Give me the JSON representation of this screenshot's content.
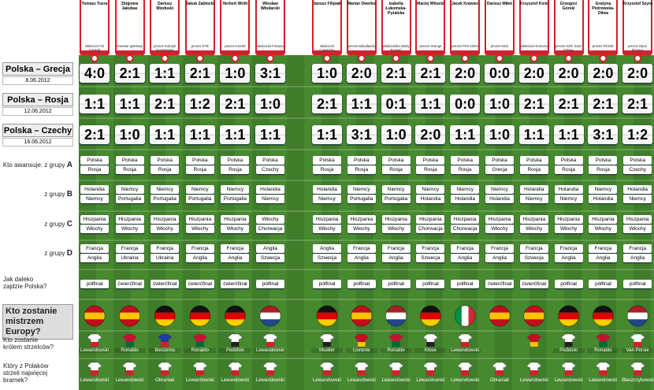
{
  "matches": [
    {
      "title": "Polska – Grecja",
      "date": "8.06.2012"
    },
    {
      "title": "Polska – Rosja",
      "date": "12.06.2012"
    },
    {
      "title": "Polska – Czechy",
      "date": "16.06.2012"
    }
  ],
  "labels": {
    "groups": [
      {
        "prefix": "Kto awansuje: z grupy",
        "letter": "A"
      },
      {
        "prefix": "z grupy",
        "letter": "B"
      },
      {
        "prefix": "z grupy",
        "letter": "C"
      },
      {
        "prefix": "z grupy",
        "letter": "D"
      }
    ],
    "poland": "Jak daleko zajdzie Polska?",
    "champion": "Kto zostanie mistrzem Europy?",
    "top_scorer": "Kto zostanie królem strzelców?",
    "polish_scorer": "Który z Polaków strzeli najwięcej bramek?"
  },
  "people": [
    {
      "name": "Tomasz Tusra",
      "role": "właściciel YZ Consult",
      "scores": [
        "4:0",
        "1:1",
        "2:1"
      ],
      "groups": [
        [
          "Polska",
          "Rosja"
        ],
        [
          "Holandia",
          "Niemcy"
        ],
        [
          "Hiszpania",
          "Włochy"
        ],
        [
          "Francja",
          "Anglia"
        ]
      ],
      "poland": "półfinał",
      "champion_flag": {
        "dir": "h",
        "colors": [
          "#c60b1e",
          "#ffc400",
          "#c60b1e"
        ]
      },
      "top_scorer": "Lewandowski",
      "top_jersey": [
        "#ffffff",
        "#d4202c"
      ],
      "polish_scorer": "Lewandowski"
    },
    {
      "name": "Zbigniew Jakubas",
      "role": "inwestor giełdowy",
      "scores": [
        "2:1",
        "1:1",
        "1:0"
      ],
      "groups": [
        [
          "Polska",
          "Rosja"
        ],
        [
          "Niemcy",
          "Portugalia"
        ],
        [
          "Hiszpania",
          "Włochy"
        ],
        [
          "Francja",
          "Ukraina"
        ]
      ],
      "poland": "ćwierćfinał",
      "champion_flag": {
        "dir": "h",
        "colors": [
          "#c60b1e",
          "#ffc400",
          "#c60b1e"
        ]
      },
      "top_scorer": "Ronaldo",
      "top_jersey": [
        "#c8102e",
        "#046a38"
      ],
      "polish_scorer": "Lewandowski"
    },
    {
      "name": "Dariusz Mioduski",
      "role": "prezes Kulczyk Investments",
      "scores": [
        "1:1",
        "2:1",
        "1:1"
      ],
      "groups": [
        [
          "Polska",
          "Rosja"
        ],
        [
          "Niemcy",
          "Portugalia"
        ],
        [
          "Hiszpania",
          "Włochy"
        ],
        [
          "Francja",
          "Ukraina"
        ]
      ],
      "poland": "ćwierćfinał",
      "champion_flag": {
        "dir": "h",
        "colors": [
          "#111111",
          "#dd0000",
          "#ffce00"
        ]
      },
      "top_scorer": "Benzema",
      "top_jersey": [
        "#1f3c9a",
        "#d4202c"
      ],
      "polish_scorer": "Obraniak"
    },
    {
      "name": "Jakub Zabłocki",
      "role": "prezes KTB",
      "scores": [
        "2:1",
        "1:2",
        "1:1"
      ],
      "groups": [
        [
          "Polska",
          "Rosja"
        ],
        [
          "Niemcy",
          "Portugalia"
        ],
        [
          "Hiszpania",
          "Włochy"
        ],
        [
          "Francja",
          "Anglia"
        ]
      ],
      "poland": "ćwierćfinał",
      "champion_flag": {
        "dir": "h",
        "colors": [
          "#111111",
          "#dd0000",
          "#ffce00"
        ]
      },
      "top_scorer": "Ronaldo",
      "top_jersey": [
        "#c8102e",
        "#046a38"
      ],
      "polish_scorer": "Lewandowski"
    },
    {
      "name": "Herbert Wirth",
      "role": "prezes KGHM",
      "scores": [
        "1:0",
        "2:1",
        "1:1"
      ],
      "groups": [
        [
          "Polska",
          "Rosja"
        ],
        [
          "Niemcy",
          "Portugalia"
        ],
        [
          "Hiszpania",
          "Włochy"
        ],
        [
          "Francja",
          "Anglia"
        ]
      ],
      "poland": "ćwierćfinał",
      "champion_flag": {
        "dir": "h",
        "colors": [
          "#111111",
          "#dd0000",
          "#ffce00"
        ]
      },
      "top_scorer": "Podolski",
      "top_jersey": [
        "#ffffff",
        "#222222"
      ],
      "polish_scorer": "Lewandowski"
    },
    {
      "name": "Wiesław Włodarski",
      "role": "właściciel Fortuna",
      "scores": [
        "3:1",
        "1:0",
        "1:1"
      ],
      "groups": [
        [
          "Polska",
          "Czechy"
        ],
        [
          "Holandia",
          "Niemcy"
        ],
        [
          "Włochy",
          "Chorwacja"
        ],
        [
          "Anglia",
          "Szwecja"
        ]
      ],
      "poland": "półfinał",
      "champion_flag": {
        "dir": "h",
        "colors": [
          "#ae1c28",
          "#ffffff",
          "#21468b"
        ]
      },
      "top_scorer": "Lewandowski",
      "top_jersey": [
        "#ffffff",
        "#d4202c"
      ],
      "polish_scorer": "Lewandowski"
    },
    {
      "name": "Janusz Filipiak",
      "role": "właściciel Comarchu",
      "scores": [
        "1:0",
        "2:1",
        "1:1"
      ],
      "groups": [
        [
          "Polska",
          "Rosja"
        ],
        [
          "Holandia",
          "Niemcy"
        ],
        [
          "Hiszpania",
          "Włochy"
        ],
        [
          "Anglia",
          "Szwecja"
        ]
      ],
      "poland": "półfinał",
      "champion_flag": {
        "dir": "h",
        "colors": [
          "#111111",
          "#dd0000",
          "#ffce00"
        ]
      },
      "top_scorer": "Mueller",
      "top_jersey": [
        "#ffffff",
        "#222222"
      ],
      "polish_scorer": "Lewandowski"
    },
    {
      "name": "Marian Owerko",
      "role": "prezes Bakallandu",
      "scores": [
        "2:0",
        "1:1",
        "3:1"
      ],
      "groups": [
        [
          "Polska",
          "Rosja"
        ],
        [
          "Niemcy",
          "Portugalia"
        ],
        [
          "Hiszpania",
          "Włochy"
        ],
        [
          "Francja",
          "Anglia"
        ]
      ],
      "poland": "półfinał",
      "champion_flag": {
        "dir": "h",
        "colors": [
          "#c60b1e",
          "#ffc400",
          "#c60b1e"
        ]
      },
      "top_scorer": "Llorente",
      "top_jersey": [
        "#c60b1e",
        "#ffc400"
      ],
      "polish_scorer": "Lewandowski"
    },
    {
      "name": "Izabella Łukomska-Pyżalska",
      "role": "właścicielka Warty Poznań",
      "scores": [
        "2:1",
        "0:1",
        "1:0"
      ],
      "groups": [
        [
          "Polska",
          "Rosja"
        ],
        [
          "Niemcy",
          "Portugalia"
        ],
        [
          "Hiszpania",
          "Włochy"
        ],
        [
          "Francja",
          "Anglia"
        ]
      ],
      "poland": "półfinał",
      "champion_flag": {
        "dir": "h",
        "colors": [
          "#ae1c28",
          "#ffffff",
          "#21468b"
        ]
      },
      "top_scorer": "Ronaldo",
      "top_jersey": [
        "#c8102e",
        "#046a38"
      ],
      "polish_scorer": "Lewandowski"
    },
    {
      "name": "Maciej Witucki",
      "role": "prezes Orange",
      "scores": [
        "2:1",
        "1:1",
        "2:0"
      ],
      "groups": [
        [
          "Polska",
          "Rosja"
        ],
        [
          "Niemcy",
          "Holandia"
        ],
        [
          "Hiszpania",
          "Chorwacja"
        ],
        [
          "Francja",
          "Szwecja"
        ]
      ],
      "poland": "półfinał",
      "champion_flag": {
        "dir": "h",
        "colors": [
          "#111111",
          "#dd0000",
          "#ffce00"
        ]
      },
      "top_scorer": "Klose",
      "top_jersey": [
        "#ffffff",
        "#222222"
      ],
      "polish_scorer": "Lewandowski"
    },
    {
      "name": "Jacek Krawiec",
      "role": "prezes PKN Orlen",
      "scores": [
        "2:0",
        "0:0",
        "1:1"
      ],
      "groups": [
        [
          "Polska",
          "Rosja"
        ],
        [
          "Niemcy",
          "Holandia"
        ],
        [
          "Hiszpania",
          "Chorwacja"
        ],
        [
          "Francja",
          "Anglia"
        ]
      ],
      "poland": "półfinał",
      "champion_flag": {
        "dir": "v",
        "colors": [
          "#009246",
          "#ffffff",
          "#ce2b37"
        ]
      },
      "top_scorer": "Lewandowski",
      "top_jersey": [
        "#ffffff",
        "#d4202c"
      ],
      "polish_scorer": "Lewandowski"
    },
    {
      "name": "Dariusz Miłek",
      "role": "prezes NG2",
      "scores": [
        "0:0",
        "1:0",
        "1:0"
      ],
      "groups": [
        [
          "Polska",
          "Grecja"
        ],
        [
          "Niemcy",
          "Holandia"
        ],
        [
          "Hiszpania",
          "Włochy"
        ],
        [
          "Francja",
          "Anglia"
        ]
      ],
      "poland": "ćwierćfinał",
      "champion_flag": {
        "dir": "h",
        "colors": [
          "#c60b1e",
          "#ffc400",
          "#c60b1e"
        ]
      },
      "top_scorer": null,
      "top_jersey": null,
      "polish_scorer": "Obraniak"
    },
    {
      "name": "Krzysztof Kicki",
      "role": "właściciel Krezusu",
      "scores": [
        "2:0",
        "2:1",
        "1:1"
      ],
      "groups": [
        [
          "Polska",
          "Rosja"
        ],
        [
          "Holandia",
          "Niemcy"
        ],
        [
          "Hiszpania",
          "Włochy"
        ],
        [
          "Francja",
          "Szwecja"
        ]
      ],
      "poland": "ćwierćfinał",
      "champion_flag": {
        "dir": "h",
        "colors": [
          "#c60b1e",
          "#ffc400",
          "#c60b1e"
        ]
      },
      "top_scorer": null,
      "top_jersey": [
        "#c60b1e",
        "#ffc400"
      ],
      "polish_scorer": "Lewandowski"
    },
    {
      "name": "Grzegorz Górski",
      "role": "prezes GDF Suez Polska",
      "scores": [
        "2:0",
        "2:1",
        "1:1"
      ],
      "groups": [
        [
          "Polska",
          "Rosja"
        ],
        [
          "Holandia",
          "Niemcy"
        ],
        [
          "Hiszpania",
          "Włochy"
        ],
        [
          "Francja",
          "Anglia"
        ]
      ],
      "poland": "półfinał",
      "champion_flag": {
        "dir": "h",
        "colors": [
          "#111111",
          "#dd0000",
          "#ffce00"
        ]
      },
      "top_scorer": "Podolski",
      "top_jersey": [
        "#ffffff",
        "#222222"
      ],
      "polish_scorer": "Lewandowski"
    },
    {
      "name": "Grażyna Piotrowska-Oliwa",
      "role": "prezes PGNiG",
      "scores": [
        "2:0",
        "2:1",
        "3:1"
      ],
      "groups": [
        [
          "Polska",
          "Rosja"
        ],
        [
          "Niemcy",
          "Holandia"
        ],
        [
          "Hiszpania",
          "Włochy"
        ],
        [
          "Francja",
          "Anglia"
        ]
      ],
      "poland": "półfinał",
      "champion_flag": {
        "dir": "h",
        "colors": [
          "#111111",
          "#dd0000",
          "#ffce00"
        ]
      },
      "top_scorer": "Ronaldo",
      "top_jersey": [
        "#c8102e",
        "#046a38"
      ],
      "polish_scorer": "Lewandowski"
    },
    {
      "name": "Krzysztof Szyra",
      "role": "prezes Open Finance",
      "scores": [
        "2:0",
        "2:1",
        "1:2"
      ],
      "groups": [
        [
          "Polska",
          "Czechy"
        ],
        [
          "Holandia",
          "Niemcy"
        ],
        [
          "Hiszpania",
          "Włochy"
        ],
        [
          "Francja",
          "Anglia"
        ]
      ],
      "poland": "półfinał",
      "champion_flag": {
        "dir": "h",
        "colors": [
          "#ae1c28",
          "#ffffff",
          "#21468b"
        ]
      },
      "top_scorer": "Van Persie",
      "top_jersey": [
        "#ffffff",
        "#d4202c"
      ],
      "polish_scorer": "Błaszczykowski"
    }
  ]
}
